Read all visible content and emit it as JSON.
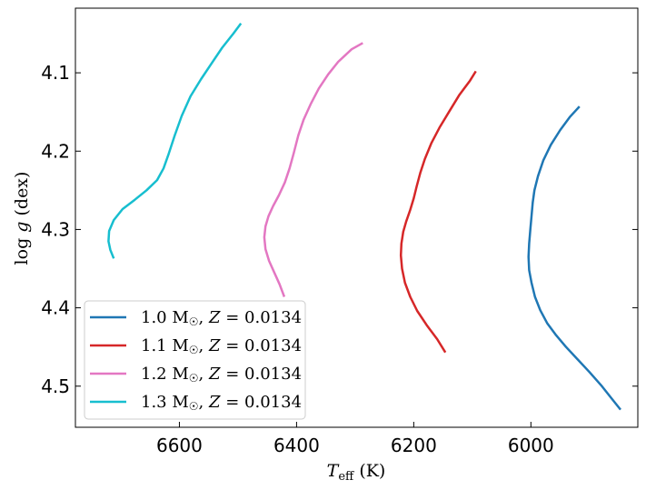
{
  "chart_data": {
    "type": "line",
    "xlabel": {
      "symbol": "T",
      "sub": "eff",
      "unit": " (K)"
    },
    "ylabel": {
      "prefix": "log ",
      "symbol": "g",
      "unit": " (dex)"
    },
    "xlim": [
      6777.5,
      5817.5
    ],
    "ylim": [
      4.5525,
      4.0175
    ],
    "x_inverted": true,
    "y_inverted": true,
    "xticks": [
      6600,
      6400,
      6200,
      6000
    ],
    "yticks": [
      4.1,
      4.2,
      4.3,
      4.4,
      4.5
    ],
    "grid": false,
    "legend_position": "lower-left",
    "series": [
      {
        "name": "1.0 M☉, Z = 0.0134",
        "mass": "1.0",
        "z": "0.0134",
        "color": "#1f77b4",
        "points": [
          [
            5847,
            4.53
          ],
          [
            5862,
            4.516
          ],
          [
            5880,
            4.499
          ],
          [
            5900,
            4.482
          ],
          [
            5920,
            4.466
          ],
          [
            5940,
            4.45
          ],
          [
            5958,
            4.434
          ],
          [
            5972,
            4.42
          ],
          [
            5984,
            4.403
          ],
          [
            5993,
            4.386
          ],
          [
            5999,
            4.368
          ],
          [
            6003,
            4.352
          ],
          [
            6004,
            4.335
          ],
          [
            6003,
            4.318
          ],
          [
            6001,
            4.3
          ],
          [
            5999,
            4.283
          ],
          [
            5997,
            4.266
          ],
          [
            5994,
            4.25
          ],
          [
            5988,
            4.232
          ],
          [
            5979,
            4.212
          ],
          [
            5966,
            4.192
          ],
          [
            5950,
            4.173
          ],
          [
            5933,
            4.156
          ],
          [
            5917,
            4.143
          ]
        ]
      },
      {
        "name": "1.1 M☉, Z = 0.0134",
        "mass": "1.1",
        "z": "0.0134",
        "color": "#d62728",
        "points": [
          [
            6146,
            4.457
          ],
          [
            6160,
            4.44
          ],
          [
            6178,
            4.422
          ],
          [
            6194,
            4.404
          ],
          [
            6206,
            4.386
          ],
          [
            6215,
            4.368
          ],
          [
            6220,
            4.35
          ],
          [
            6222,
            4.333
          ],
          [
            6221,
            4.318
          ],
          [
            6218,
            4.303
          ],
          [
            6213,
            4.29
          ],
          [
            6206,
            4.275
          ],
          [
            6200,
            4.26
          ],
          [
            6195,
            4.245
          ],
          [
            6189,
            4.228
          ],
          [
            6181,
            4.21
          ],
          [
            6170,
            4.19
          ],
          [
            6156,
            4.17
          ],
          [
            6140,
            4.15
          ],
          [
            6122,
            4.128
          ],
          [
            6104,
            4.11
          ],
          [
            6094,
            4.098
          ]
        ]
      },
      {
        "name": "1.2 M☉, Z = 0.0134",
        "mass": "1.2",
        "z": "0.0134",
        "color": "#e377c2",
        "points": [
          [
            6421,
            4.386
          ],
          [
            6429,
            4.37
          ],
          [
            6438,
            4.355
          ],
          [
            6447,
            4.34
          ],
          [
            6453,
            4.325
          ],
          [
            6455,
            4.31
          ],
          [
            6453,
            4.296
          ],
          [
            6448,
            4.283
          ],
          [
            6440,
            4.27
          ],
          [
            6430,
            4.256
          ],
          [
            6420,
            4.24
          ],
          [
            6412,
            4.222
          ],
          [
            6405,
            4.203
          ],
          [
            6397,
            4.18
          ],
          [
            6388,
            4.16
          ],
          [
            6376,
            4.14
          ],
          [
            6362,
            4.12
          ],
          [
            6346,
            4.102
          ],
          [
            6329,
            4.086
          ],
          [
            6306,
            4.07
          ],
          [
            6287,
            4.062
          ]
        ]
      },
      {
        "name": "1.3 M☉, Z = 0.0134",
        "mass": "1.3",
        "z": "0.0134",
        "color": "#17becf",
        "points": [
          [
            6712,
            4.337
          ],
          [
            6718,
            4.326
          ],
          [
            6721,
            4.315
          ],
          [
            6720,
            4.302
          ],
          [
            6712,
            4.288
          ],
          [
            6697,
            4.274
          ],
          [
            6676,
            4.262
          ],
          [
            6656,
            4.25
          ],
          [
            6638,
            4.237
          ],
          [
            6627,
            4.222
          ],
          [
            6619,
            4.205
          ],
          [
            6608,
            4.18
          ],
          [
            6596,
            4.155
          ],
          [
            6581,
            4.13
          ],
          [
            6563,
            4.108
          ],
          [
            6545,
            4.088
          ],
          [
            6527,
            4.068
          ],
          [
            6508,
            4.05
          ],
          [
            6495,
            4.037
          ]
        ]
      }
    ]
  }
}
